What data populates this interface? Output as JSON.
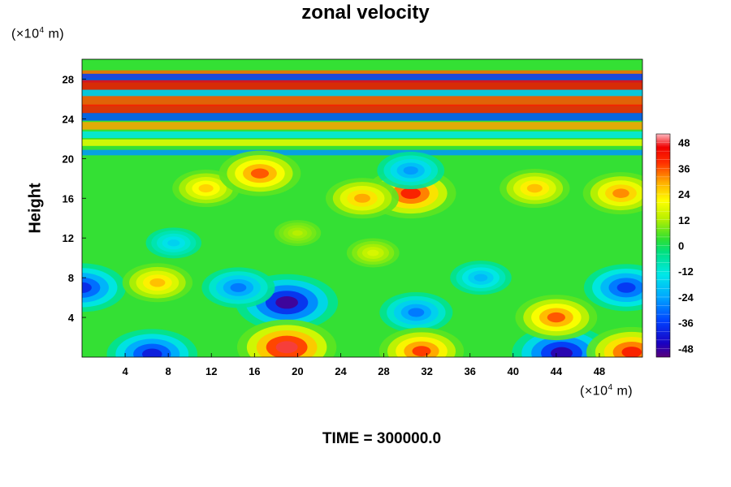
{
  "chart_data": {
    "type": "heatmap",
    "title": "zonal velocity",
    "ylabel": "Height",
    "xlabel": "",
    "x_unit": "(×10",
    "x_unit_exp": "4",
    "x_unit_tail": " m)",
    "y_unit": "(×10",
    "y_unit_exp": "4",
    "y_unit_tail": " m)",
    "xlim": [
      0,
      52
    ],
    "ylim": [
      0,
      30
    ],
    "x_ticks": [
      "4",
      "8",
      "12",
      "16",
      "20",
      "24",
      "28",
      "32",
      "36",
      "40",
      "44",
      "48"
    ],
    "y_ticks": [
      "4",
      "8",
      "12",
      "16",
      "20",
      "24",
      "28"
    ],
    "colorbar": {
      "range": [
        -52,
        52
      ],
      "ticks": [
        "48",
        "36",
        "24",
        "12",
        "0",
        "-12",
        "-24",
        "-36",
        "-48"
      ]
    },
    "features": [
      {
        "x": 19,
        "y": 5.5,
        "value": -50
      },
      {
        "x": 14.5,
        "y": 7,
        "value": -30
      },
      {
        "x": 6.5,
        "y": 0.3,
        "value": -42
      },
      {
        "x": 44.5,
        "y": 0.4,
        "value": -48
      },
      {
        "x": 0,
        "y": 7,
        "value": -40
      },
      {
        "x": 50.5,
        "y": 7,
        "value": -38
      },
      {
        "x": 31,
        "y": 4.5,
        "value": -30
      },
      {
        "x": 37,
        "y": 8,
        "value": -22
      },
      {
        "x": 19,
        "y": 1,
        "value": 48
      },
      {
        "x": 31.5,
        "y": 0.6,
        "value": 38
      },
      {
        "x": 44,
        "y": 4,
        "value": 36
      },
      {
        "x": 51,
        "y": 0.5,
        "value": 42
      },
      {
        "x": 7,
        "y": 7.5,
        "value": 28
      },
      {
        "x": 11.5,
        "y": 17,
        "value": 26
      },
      {
        "x": 16.5,
        "y": 18.5,
        "value": 36
      },
      {
        "x": 30.5,
        "y": 16.5,
        "value": 42
      },
      {
        "x": 26,
        "y": 16,
        "value": 30
      },
      {
        "x": 42,
        "y": 17,
        "value": 28
      },
      {
        "x": 50,
        "y": 16.5,
        "value": 32
      },
      {
        "x": 30.5,
        "y": 18.8,
        "value": -26
      },
      {
        "x": 8.5,
        "y": 11.5,
        "value": -18
      },
      {
        "x": 27,
        "y": 10.5,
        "value": 16
      },
      {
        "x": 20,
        "y": 12.5,
        "value": 12
      }
    ],
    "bands": [
      {
        "y": 28.5,
        "value": 34,
        "width": 0.35
      },
      {
        "y": 28.1,
        "value": -36,
        "width": 0.4
      },
      {
        "y": 27.4,
        "value": 44,
        "width": 0.45
      },
      {
        "y": 26.6,
        "value": -20,
        "width": 0.3
      },
      {
        "y": 25.8,
        "value": 36,
        "width": 0.45
      },
      {
        "y": 25.0,
        "value": 42,
        "width": 0.4
      },
      {
        "y": 24.2,
        "value": -34,
        "width": 0.35
      },
      {
        "y": 23.3,
        "value": 30,
        "width": 0.35
      },
      {
        "y": 22.4,
        "value": -14,
        "width": 0.3
      },
      {
        "y": 21.6,
        "value": 18,
        "width": 0.3
      },
      {
        "y": 20.6,
        "value": -26,
        "width": 0.25
      }
    ]
  },
  "footer": {
    "time_label": "TIME = 300000.0"
  }
}
